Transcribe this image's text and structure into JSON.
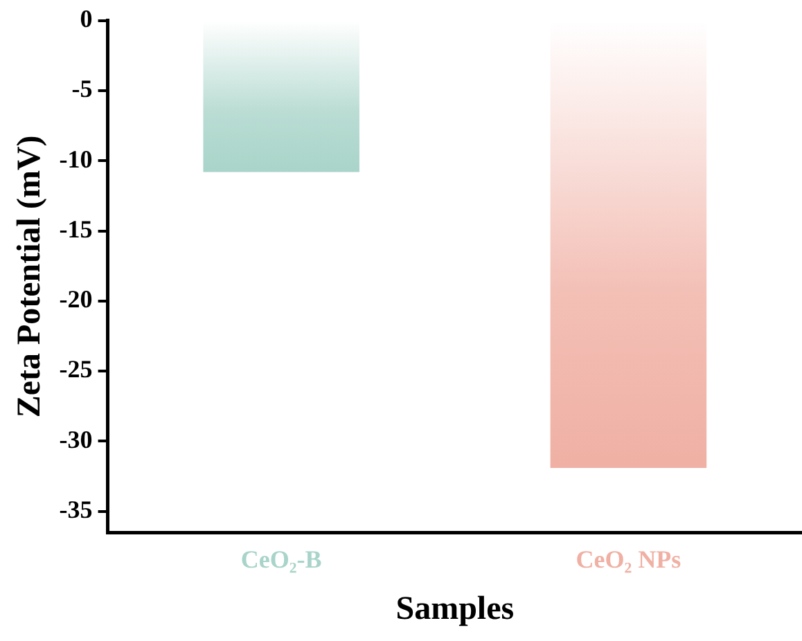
{
  "chart_data": {
    "type": "bar",
    "categories": [
      "CeO₂-B",
      "CeO₂ NPs"
    ],
    "values": [
      -10.8,
      -31.9
    ],
    "colors": [
      "#a9d4c9",
      "#f0b0a4"
    ],
    "xlabel": "Samples",
    "ylabel": "Zeta Potential (mV)",
    "ylim": [
      -36.5,
      0
    ],
    "yticks": [
      0,
      -5,
      -10,
      -15,
      -20,
      -25,
      -30,
      -35
    ],
    "grid": false,
    "legend": false
  }
}
